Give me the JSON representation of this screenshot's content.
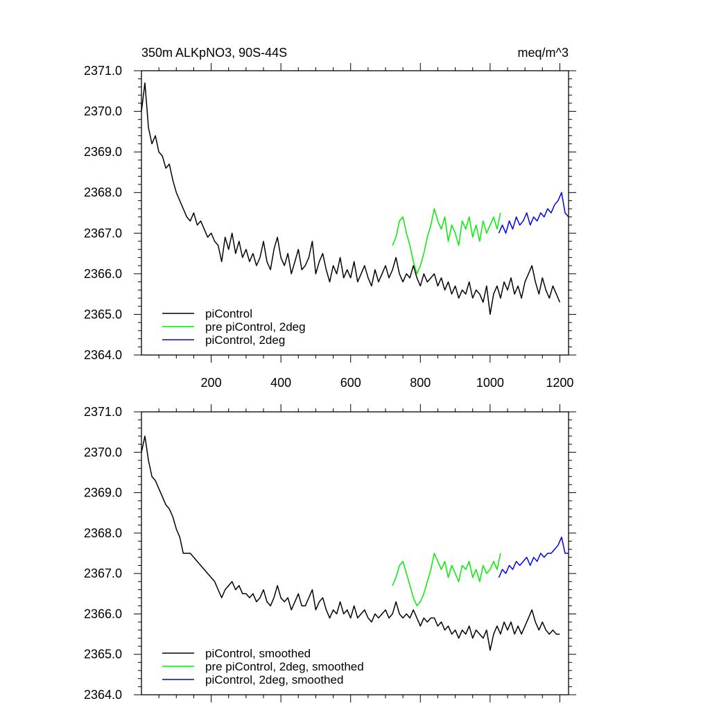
{
  "header": {
    "title": "350m ALKpNO3, 90S-44S",
    "units": "meq/m^3"
  },
  "colors": {
    "piControl": "#000000",
    "pre_piControl_2deg": "#00ee00",
    "piControl_2deg": "#0000ee"
  },
  "chart_data": [
    {
      "type": "line",
      "title": "350m ALKpNO3, 90S-44S",
      "subtitle": "meq/m^3",
      "xlim": [
        0,
        1225
      ],
      "ylim": [
        2364.0,
        2371.0
      ],
      "x_ticks": [
        200,
        400,
        600,
        800,
        1000,
        1200
      ],
      "x_tick_labels": [
        "200",
        "400",
        "600",
        "800",
        "1000",
        "1200"
      ],
      "y_ticks": [
        2364.0,
        2365.0,
        2366.0,
        2367.0,
        2368.0,
        2369.0,
        2370.0,
        2371.0
      ],
      "y_tick_labels": [
        "2364.0",
        "2365.0",
        "2366.0",
        "2367.0",
        "2368.0",
        "2369.0",
        "2370.0",
        "2371.0"
      ],
      "legend_position": "bottom-left",
      "series": [
        {
          "name": "piControl",
          "color": "#000000",
          "x": [
            0,
            10,
            20,
            30,
            40,
            50,
            60,
            70,
            80,
            90,
            100,
            110,
            120,
            130,
            140,
            150,
            160,
            170,
            180,
            190,
            200,
            210,
            220,
            230,
            240,
            250,
            260,
            270,
            280,
            290,
            300,
            310,
            320,
            330,
            340,
            350,
            360,
            370,
            380,
            390,
            400,
            410,
            420,
            430,
            440,
            450,
            460,
            470,
            480,
            490,
            500,
            510,
            520,
            530,
            540,
            550,
            560,
            570,
            580,
            590,
            600,
            610,
            620,
            630,
            640,
            650,
            660,
            670,
            680,
            690,
            700,
            710,
            720,
            730,
            740,
            750,
            760,
            770,
            780,
            790,
            800,
            810,
            820,
            830,
            840,
            850,
            860,
            870,
            880,
            890,
            900,
            910,
            920,
            930,
            940,
            950,
            960,
            970,
            980,
            990,
            1000,
            1010,
            1020,
            1030,
            1040,
            1050,
            1060,
            1070,
            1080,
            1090,
            1100,
            1110,
            1120,
            1130,
            1140,
            1150,
            1160,
            1170,
            1180,
            1190,
            1200
          ],
          "y": [
            2370.0,
            2370.7,
            2369.6,
            2369.2,
            2369.4,
            2369.0,
            2368.9,
            2368.6,
            2368.7,
            2368.3,
            2368.0,
            2367.8,
            2367.6,
            2367.4,
            2367.3,
            2367.5,
            2367.2,
            2367.3,
            2367.1,
            2366.9,
            2367.0,
            2366.8,
            2366.7,
            2366.3,
            2366.9,
            2366.6,
            2367.0,
            2366.5,
            2366.8,
            2366.4,
            2366.6,
            2366.3,
            2366.5,
            2366.2,
            2366.4,
            2366.8,
            2366.3,
            2366.1,
            2366.6,
            2366.9,
            2366.4,
            2366.2,
            2366.5,
            2366.0,
            2366.3,
            2366.6,
            2366.1,
            2366.2,
            2366.4,
            2366.8,
            2366.0,
            2366.3,
            2366.5,
            2366.1,
            2365.8,
            2366.2,
            2366.0,
            2366.4,
            2365.9,
            2366.1,
            2365.9,
            2366.3,
            2365.8,
            2366.0,
            2366.2,
            2365.9,
            2365.7,
            2366.1,
            2365.8,
            2366.0,
            2366.2,
            2365.9,
            2366.1,
            2366.4,
            2366.0,
            2365.8,
            2366.0,
            2365.9,
            2366.2,
            2365.9,
            2365.7,
            2366.0,
            2365.8,
            2365.9,
            2366.0,
            2365.7,
            2365.9,
            2365.6,
            2365.8,
            2365.5,
            2365.7,
            2365.4,
            2365.6,
            2365.5,
            2365.8,
            2365.4,
            2365.6,
            2365.5,
            2365.3,
            2365.7,
            2365.0,
            2365.5,
            2365.7,
            2365.4,
            2365.8,
            2365.6,
            2365.9,
            2365.5,
            2365.7,
            2365.4,
            2365.8,
            2366.0,
            2366.2,
            2365.8,
            2365.5,
            2365.9,
            2365.6,
            2365.4,
            2365.7,
            2365.5,
            2365.3
          ]
        },
        {
          "name": "pre piControl, 2deg",
          "color": "#00ee00",
          "x": [
            720,
            730,
            740,
            750,
            760,
            770,
            780,
            790,
            800,
            810,
            820,
            830,
            840,
            850,
            860,
            870,
            880,
            890,
            900,
            910,
            920,
            930,
            940,
            950,
            960,
            970,
            980,
            990,
            1000,
            1010,
            1020,
            1030
          ],
          "y": [
            2366.7,
            2366.9,
            2367.3,
            2367.4,
            2367.0,
            2366.7,
            2366.3,
            2366.0,
            2366.2,
            2366.5,
            2366.9,
            2367.2,
            2367.6,
            2367.3,
            2367.1,
            2367.4,
            2366.8,
            2367.2,
            2367.0,
            2366.7,
            2367.3,
            2367.1,
            2367.4,
            2366.9,
            2367.2,
            2366.8,
            2367.3,
            2367.0,
            2367.2,
            2367.4,
            2367.1,
            2367.5
          ]
        },
        {
          "name": "piControl, 2deg",
          "color": "#0000ee",
          "x": [
            1025,
            1035,
            1045,
            1055,
            1065,
            1075,
            1085,
            1095,
            1105,
            1115,
            1125,
            1135,
            1145,
            1155,
            1165,
            1175,
            1185,
            1195,
            1205,
            1215,
            1225
          ],
          "y": [
            2367.0,
            2367.2,
            2367.0,
            2367.3,
            2367.1,
            2367.4,
            2367.2,
            2367.3,
            2367.5,
            2367.2,
            2367.4,
            2367.3,
            2367.5,
            2367.4,
            2367.6,
            2367.5,
            2367.7,
            2367.8,
            2368.0,
            2367.5,
            2367.4
          ]
        }
      ]
    },
    {
      "type": "line",
      "xlim": [
        0,
        1225
      ],
      "ylim": [
        2364.0,
        2371.0
      ],
      "x_ticks": [
        200,
        400,
        600,
        800,
        1000,
        1200
      ],
      "y_ticks": [
        2364.0,
        2365.0,
        2366.0,
        2367.0,
        2368.0,
        2369.0,
        2370.0,
        2371.0
      ],
      "y_tick_labels": [
        "2364.0",
        "2365.0",
        "2366.0",
        "2367.0",
        "2368.0",
        "2369.0",
        "2370.0",
        "2371.0"
      ],
      "legend_position": "bottom-left",
      "series": [
        {
          "name": "piControl, smoothed",
          "color": "#000000",
          "x": [
            0,
            10,
            20,
            30,
            40,
            50,
            60,
            70,
            80,
            90,
            100,
            110,
            120,
            130,
            140,
            150,
            160,
            170,
            180,
            190,
            200,
            210,
            220,
            230,
            240,
            250,
            260,
            270,
            280,
            290,
            300,
            310,
            320,
            330,
            340,
            350,
            360,
            370,
            380,
            390,
            400,
            410,
            420,
            430,
            440,
            450,
            460,
            470,
            480,
            490,
            500,
            510,
            520,
            530,
            540,
            550,
            560,
            570,
            580,
            590,
            600,
            610,
            620,
            630,
            640,
            650,
            660,
            670,
            680,
            690,
            700,
            710,
            720,
            730,
            740,
            750,
            760,
            770,
            780,
            790,
            800,
            810,
            820,
            830,
            840,
            850,
            860,
            870,
            880,
            890,
            900,
            910,
            920,
            930,
            940,
            950,
            960,
            970,
            980,
            990,
            1000,
            1010,
            1020,
            1030,
            1040,
            1050,
            1060,
            1070,
            1080,
            1090,
            1100,
            1110,
            1120,
            1130,
            1140,
            1150,
            1160,
            1170,
            1180,
            1190,
            1200
          ],
          "y": [
            2370.0,
            2370.4,
            2369.8,
            2369.4,
            2369.3,
            2369.1,
            2368.9,
            2368.7,
            2368.6,
            2368.4,
            2368.1,
            2367.9,
            2367.5,
            2367.5,
            2367.5,
            2367.4,
            2367.3,
            2367.2,
            2367.1,
            2367.0,
            2366.9,
            2366.8,
            2366.6,
            2366.4,
            2366.6,
            2366.7,
            2366.8,
            2366.6,
            2366.7,
            2366.5,
            2366.5,
            2366.4,
            2366.5,
            2366.3,
            2366.4,
            2366.6,
            2366.3,
            2366.2,
            2366.4,
            2366.7,
            2366.4,
            2366.3,
            2366.4,
            2366.1,
            2366.3,
            2366.5,
            2366.2,
            2366.2,
            2366.4,
            2366.6,
            2366.1,
            2366.3,
            2366.4,
            2366.1,
            2365.9,
            2366.1,
            2366.0,
            2366.3,
            2366.0,
            2366.1,
            2365.9,
            2366.2,
            2365.9,
            2366.0,
            2366.1,
            2365.9,
            2365.8,
            2366.0,
            2365.9,
            2366.0,
            2366.1,
            2365.9,
            2366.0,
            2366.3,
            2366.0,
            2365.9,
            2366.0,
            2365.9,
            2366.1,
            2365.9,
            2365.7,
            2365.9,
            2365.8,
            2365.9,
            2365.9,
            2365.7,
            2365.8,
            2365.6,
            2365.7,
            2365.5,
            2365.6,
            2365.4,
            2365.6,
            2365.5,
            2365.7,
            2365.4,
            2365.6,
            2365.5,
            2365.4,
            2365.6,
            2365.1,
            2365.5,
            2365.7,
            2365.5,
            2365.8,
            2365.6,
            2365.8,
            2365.5,
            2365.7,
            2365.5,
            2365.7,
            2365.9,
            2366.1,
            2365.8,
            2365.6,
            2365.8,
            2365.6,
            2365.5,
            2365.6,
            2365.5,
            2365.5
          ]
        },
        {
          "name": "pre piControl, 2deg, smoothed",
          "color": "#00ee00",
          "x": [
            720,
            730,
            740,
            750,
            760,
            770,
            780,
            790,
            800,
            810,
            820,
            830,
            840,
            850,
            860,
            870,
            880,
            890,
            900,
            910,
            920,
            930,
            940,
            950,
            960,
            970,
            980,
            990,
            1000,
            1010,
            1020,
            1030
          ],
          "y": [
            2366.7,
            2366.9,
            2367.2,
            2367.3,
            2367.0,
            2366.7,
            2366.4,
            2366.2,
            2366.3,
            2366.5,
            2366.8,
            2367.1,
            2367.5,
            2367.3,
            2367.1,
            2367.3,
            2366.9,
            2367.2,
            2367.0,
            2366.8,
            2367.2,
            2367.1,
            2367.3,
            2366.9,
            2367.1,
            2366.8,
            2367.2,
            2367.0,
            2367.1,
            2367.3,
            2367.1,
            2367.5
          ]
        },
        {
          "name": "piControl, 2deg, smoothed",
          "color": "#0000ee",
          "x": [
            1025,
            1035,
            1045,
            1055,
            1065,
            1075,
            1085,
            1095,
            1105,
            1115,
            1125,
            1135,
            1145,
            1155,
            1165,
            1175,
            1185,
            1195,
            1205,
            1215,
            1225
          ],
          "y": [
            2366.9,
            2367.1,
            2367.0,
            2367.2,
            2367.1,
            2367.3,
            2367.2,
            2367.3,
            2367.4,
            2367.2,
            2367.4,
            2367.3,
            2367.5,
            2367.4,
            2367.5,
            2367.5,
            2367.6,
            2367.7,
            2367.9,
            2367.5,
            2367.5
          ]
        }
      ]
    }
  ]
}
